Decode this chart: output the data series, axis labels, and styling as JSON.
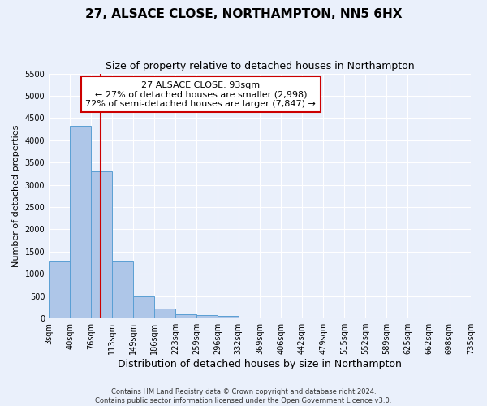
{
  "title": "27, ALSACE CLOSE, NORTHAMPTON, NN5 6HX",
  "subtitle": "Size of property relative to detached houses in Northampton",
  "xlabel": "Distribution of detached houses by size in Northampton",
  "ylabel": "Number of detached properties",
  "footnote1": "Contains HM Land Registry data © Crown copyright and database right 2024.",
  "footnote2": "Contains public sector information licensed under the Open Government Licence v3.0.",
  "annotation_title": "27 ALSACE CLOSE: 93sqm",
  "annotation_line2": "← 27% of detached houses are smaller (2,998)",
  "annotation_line3": "72% of semi-detached houses are larger (7,847) →",
  "bar_left_edges": [
    3,
    40,
    76,
    113,
    149,
    186,
    223,
    259,
    296,
    332,
    369,
    406,
    442,
    479,
    515,
    552,
    589,
    625,
    662,
    698
  ],
  "bar_widths": [
    37,
    36,
    37,
    36,
    37,
    37,
    36,
    37,
    36,
    37,
    37,
    36,
    37,
    36,
    37,
    37,
    36,
    37,
    36,
    37
  ],
  "bar_heights": [
    1270,
    4330,
    3300,
    1280,
    490,
    215,
    90,
    80,
    60,
    0,
    0,
    0,
    0,
    0,
    0,
    0,
    0,
    0,
    0,
    0
  ],
  "bar_color": "#aec6e8",
  "bar_edge_color": "#5a9fd4",
  "red_line_x": 93,
  "ylim": [
    0,
    5500
  ],
  "xlim": [
    3,
    735
  ],
  "xtick_positions": [
    3,
    40,
    76,
    113,
    149,
    186,
    223,
    259,
    296,
    332,
    369,
    406,
    442,
    479,
    515,
    552,
    589,
    625,
    662,
    698,
    735
  ],
  "xtick_labels": [
    "3sqm",
    "40sqm",
    "76sqm",
    "113sqm",
    "149sqm",
    "186sqm",
    "223sqm",
    "259sqm",
    "296sqm",
    "332sqm",
    "369sqm",
    "406sqm",
    "442sqm",
    "479sqm",
    "515sqm",
    "552sqm",
    "589sqm",
    "625sqm",
    "662sqm",
    "698sqm",
    "735sqm"
  ],
  "ytick_positions": [
    0,
    500,
    1000,
    1500,
    2000,
    2500,
    3000,
    3500,
    4000,
    4500,
    5000,
    5500
  ],
  "background_color": "#eaf0fb",
  "grid_color": "#ffffff",
  "annotation_box_color": "#ffffff",
  "annotation_box_edge": "#cc0000",
  "red_line_color": "#cc0000",
  "title_fontsize": 11,
  "subtitle_fontsize": 9,
  "xlabel_fontsize": 9,
  "ylabel_fontsize": 8,
  "tick_fontsize": 7,
  "footnote_fontsize": 6,
  "annot_fontsize": 8
}
